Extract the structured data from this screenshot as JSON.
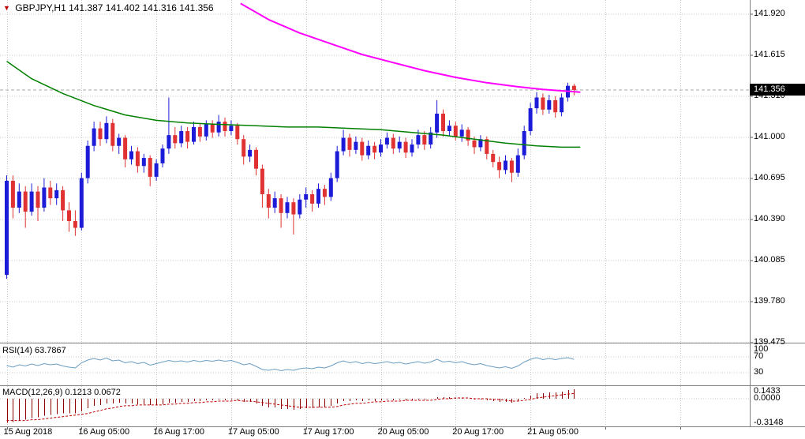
{
  "header": {
    "marker": "▼",
    "title": "GBPJPY,H1 141.387 141.402 141.316 141.356"
  },
  "indicators": {
    "rsi_label": "RSI(14) 63.7867",
    "macd_label": "MACD(12,26,9) 0.1213 0.0672"
  },
  "price_axis": {
    "ticks": [
      "141.920",
      "141.615",
      "141.310",
      "141.000",
      "140.695",
      "140.390",
      "140.085",
      "139.780",
      "139.475"
    ],
    "last_price": "141.356"
  },
  "time_axis": {
    "labels": [
      {
        "index": 0,
        "text": "15 Aug 2018"
      },
      {
        "index": 12,
        "text": "16 Aug 05:00"
      },
      {
        "index": 24,
        "text": "16 Aug 17:00"
      },
      {
        "index": 36,
        "text": "17 Aug 05:00"
      },
      {
        "index": 48,
        "text": "17 Aug 17:00"
      },
      {
        "index": 60,
        "text": "20 Aug 05:00"
      },
      {
        "index": 72,
        "text": "20 Aug 17:00"
      },
      {
        "index": 84,
        "text": "21 Aug 05:00"
      }
    ],
    "grid_indices": [
      0,
      12,
      24,
      36,
      48,
      60,
      72,
      84,
      96,
      108
    ]
  },
  "colors": {
    "bull": "#1c1cd8",
    "bear": "#e03232",
    "grid": "#c8c8c8",
    "axis_line": "#606060",
    "separator": "#808080",
    "last_price_line": "#aaaaaa",
    "badge_bg": "#000000",
    "badge_text": "#ffffff"
  },
  "chart_data": [
    {
      "type": "candlestick",
      "symbol": "GBPJPY",
      "timeframe": "H1",
      "open": 141.387,
      "high": 141.402,
      "low": 141.316,
      "close": 141.356,
      "ylim": [
        139.475,
        141.92
      ],
      "candles": [
        [
          139.98,
          140.72,
          139.95,
          140.68
        ],
        [
          140.68,
          140.72,
          140.4,
          140.48
        ],
        [
          140.48,
          140.66,
          140.44,
          140.6
        ],
        [
          140.6,
          140.64,
          140.33,
          140.45
        ],
        [
          140.45,
          140.66,
          140.42,
          140.6
        ],
        [
          140.6,
          140.64,
          140.38,
          140.48
        ],
        [
          140.48,
          140.7,
          140.45,
          140.63
        ],
        [
          140.63,
          140.68,
          140.5,
          140.55
        ],
        [
          140.55,
          140.66,
          140.5,
          140.61
        ],
        [
          140.61,
          140.64,
          140.38,
          140.46
        ],
        [
          140.46,
          140.52,
          140.3,
          140.38
        ],
        [
          140.38,
          140.46,
          140.27,
          140.33
        ],
        [
          140.33,
          140.74,
          140.31,
          140.7
        ],
        [
          140.7,
          140.98,
          140.66,
          140.94
        ],
        [
          140.94,
          141.12,
          140.9,
          141.07
        ],
        [
          141.07,
          141.12,
          140.94,
          140.99
        ],
        [
          140.99,
          141.16,
          140.96,
          141.11
        ],
        [
          141.11,
          141.14,
          140.9,
          140.94
        ],
        [
          140.94,
          141.03,
          140.88,
          141.0
        ],
        [
          141.0,
          141.02,
          140.78,
          140.84
        ],
        [
          140.84,
          140.94,
          140.8,
          140.9
        ],
        [
          140.9,
          140.93,
          140.74,
          140.79
        ],
        [
          140.79,
          140.88,
          140.74,
          140.85
        ],
        [
          140.85,
          140.87,
          140.64,
          140.71
        ],
        [
          140.71,
          140.84,
          140.68,
          140.81
        ],
        [
          140.81,
          140.95,
          140.78,
          140.92
        ],
        [
          140.92,
          141.3,
          140.88,
          141.02
        ],
        [
          141.02,
          141.08,
          140.92,
          140.96
        ],
        [
          140.96,
          141.09,
          140.93,
          141.05
        ],
        [
          141.05,
          141.08,
          140.92,
          140.97
        ],
        [
          140.97,
          141.12,
          140.95,
          141.08
        ],
        [
          141.08,
          141.11,
          140.97,
          141.01
        ],
        [
          141.01,
          141.13,
          140.98,
          141.1
        ],
        [
          141.1,
          141.13,
          141.0,
          141.04
        ],
        [
          141.04,
          141.17,
          141.01,
          141.12
        ],
        [
          141.12,
          141.15,
          141.01,
          141.05
        ],
        [
          141.05,
          141.13,
          141.02,
          141.09
        ],
        [
          141.09,
          141.11,
          140.95,
          140.99
        ],
        [
          140.99,
          141.02,
          140.8,
          140.86
        ],
        [
          140.86,
          140.95,
          140.82,
          140.91
        ],
        [
          140.91,
          140.93,
          140.72,
          140.77
        ],
        [
          140.77,
          140.8,
          140.48,
          140.58
        ],
        [
          140.58,
          140.62,
          140.4,
          140.48
        ],
        [
          140.48,
          140.6,
          140.44,
          140.55
        ],
        [
          140.55,
          140.58,
          140.33,
          140.44
        ],
        [
          140.44,
          140.56,
          140.4,
          140.52
        ],
        [
          140.52,
          140.55,
          140.28,
          140.43
        ],
        [
          140.43,
          140.58,
          140.4,
          140.54
        ],
        [
          140.54,
          140.63,
          140.48,
          140.58
        ],
        [
          140.58,
          140.61,
          140.45,
          140.51
        ],
        [
          140.51,
          140.66,
          140.48,
          140.62
        ],
        [
          140.62,
          140.65,
          140.5,
          140.56
        ],
        [
          140.56,
          140.74,
          140.53,
          140.7
        ],
        [
          140.7,
          140.94,
          140.67,
          140.9
        ],
        [
          140.9,
          141.06,
          140.87,
          141.0
        ],
        [
          141.0,
          141.03,
          140.86,
          140.91
        ],
        [
          140.91,
          141.01,
          140.88,
          140.97
        ],
        [
          140.97,
          141.0,
          140.83,
          140.87
        ],
        [
          140.87,
          140.98,
          140.84,
          140.94
        ],
        [
          140.94,
          140.97,
          140.84,
          140.89
        ],
        [
          140.89,
          140.99,
          140.86,
          140.95
        ],
        [
          140.95,
          141.04,
          140.92,
          141.0
        ],
        [
          141.0,
          141.03,
          140.88,
          140.92
        ],
        [
          140.92,
          141.01,
          140.89,
          140.97
        ],
        [
          140.97,
          141.0,
          140.85,
          140.89
        ],
        [
          140.89,
          140.99,
          140.86,
          140.95
        ],
        [
          140.95,
          141.06,
          140.92,
          141.02
        ],
        [
          141.02,
          141.05,
          140.91,
          140.95
        ],
        [
          140.95,
          141.08,
          140.92,
          141.04
        ],
        [
          141.04,
          141.28,
          141.0,
          141.18
        ],
        [
          141.18,
          141.21,
          141.01,
          141.05
        ],
        [
          141.05,
          141.13,
          141.01,
          141.09
        ],
        [
          141.09,
          141.12,
          140.98,
          141.01
        ],
        [
          141.01,
          141.1,
          140.97,
          141.06
        ],
        [
          141.06,
          141.08,
          140.94,
          140.98
        ],
        [
          140.98,
          141.01,
          140.88,
          140.93
        ],
        [
          140.93,
          141.02,
          140.9,
          140.99
        ],
        [
          140.99,
          141.01,
          140.84,
          140.88
        ],
        [
          140.88,
          140.91,
          140.78,
          140.82
        ],
        [
          140.82,
          140.86,
          140.7,
          140.76
        ],
        [
          140.76,
          140.87,
          140.73,
          140.83
        ],
        [
          140.83,
          140.85,
          140.67,
          140.74
        ],
        [
          140.74,
          140.92,
          140.71,
          140.87
        ],
        [
          140.87,
          141.09,
          140.84,
          141.05
        ],
        [
          141.05,
          141.26,
          141.02,
          141.22
        ],
        [
          141.22,
          141.34,
          141.18,
          141.3
        ],
        [
          141.3,
          141.33,
          141.17,
          141.21
        ],
        [
          141.21,
          141.32,
          141.18,
          141.28
        ],
        [
          141.28,
          141.31,
          141.15,
          141.19
        ],
        [
          141.19,
          141.33,
          141.16,
          141.3
        ],
        [
          141.3,
          141.41,
          141.27,
          141.387
        ],
        [
          141.387,
          141.402,
          141.316,
          141.356
        ]
      ],
      "overlays": [
        {
          "name": "ma-green-line",
          "color": "#008000",
          "width": 1.5,
          "points": [
            [
              0,
              141.57
            ],
            [
              4,
              141.44
            ],
            [
              9,
              141.33
            ],
            [
              14,
              141.24
            ],
            [
              19,
              141.17
            ],
            [
              24,
              141.13
            ],
            [
              29,
              141.11
            ],
            [
              34,
              141.1
            ],
            [
              40,
              141.09
            ],
            [
              45,
              141.08
            ],
            [
              50,
              141.08
            ],
            [
              55,
              141.07
            ],
            [
              60,
              141.06
            ],
            [
              65,
              141.04
            ],
            [
              70,
              141.02
            ],
            [
              75,
              140.99
            ],
            [
              80,
              140.96
            ],
            [
              85,
              140.94
            ],
            [
              89,
              140.93
            ],
            [
              92,
              140.93
            ]
          ]
        },
        {
          "name": "ma-magenta-line",
          "color": "#ff00ff",
          "width": 2,
          "points": [
            [
              37.5,
              142.0
            ],
            [
              42,
              141.88
            ],
            [
              47,
              141.78
            ],
            [
              52,
              141.7
            ],
            [
              57,
              141.62
            ],
            [
              62,
              141.56
            ],
            [
              67,
              141.5
            ],
            [
              72,
              141.45
            ],
            [
              77,
              141.41
            ],
            [
              82,
              141.38
            ],
            [
              86,
              141.36
            ],
            [
              89,
              141.35
            ],
            [
              92,
              141.34
            ]
          ]
        }
      ]
    },
    {
      "type": "line",
      "name": "RSI(14)",
      "value": 63.7867,
      "color": "#6b9dc2",
      "levels": [
        100,
        70,
        30
      ],
      "values": [
        48,
        44,
        50,
        47,
        52,
        48,
        53,
        50,
        52,
        47,
        44,
        42,
        55,
        62,
        66,
        62,
        67,
        60,
        62,
        55,
        58,
        53,
        56,
        49,
        53,
        57,
        61,
        58,
        60,
        57,
        61,
        58,
        61,
        59,
        62,
        59,
        61,
        56,
        50,
        53,
        46,
        38,
        36,
        39,
        35,
        38,
        36,
        40,
        42,
        40,
        44,
        42,
        47,
        55,
        60,
        55,
        58,
        53,
        56,
        53,
        55,
        58,
        54,
        56,
        52,
        55,
        58,
        54,
        57,
        64,
        57,
        59,
        55,
        58,
        53,
        50,
        53,
        48,
        45,
        42,
        45,
        41,
        47,
        57,
        64,
        68,
        63,
        66,
        63,
        66,
        68,
        63.79
      ]
    },
    {
      "type": "bar",
      "name": "MACD(12,26,9)",
      "macd": 0.1213,
      "signal": 0.0672,
      "histogram_color": "#8b0000",
      "signal_color": "#c00000",
      "axis_labels": [
        "0.1433",
        "0.0000",
        "-0.3148"
      ],
      "axis_values": [
        0.1433,
        0,
        -0.3148
      ],
      "values": [
        -0.31,
        -0.3,
        -0.28,
        -0.27,
        -0.25,
        -0.24,
        -0.22,
        -0.21,
        -0.2,
        -0.19,
        -0.19,
        -0.19,
        -0.16,
        -0.12,
        -0.09,
        -0.08,
        -0.06,
        -0.06,
        -0.05,
        -0.06,
        -0.06,
        -0.07,
        -0.07,
        -0.08,
        -0.08,
        -0.07,
        -0.05,
        -0.05,
        -0.04,
        -0.04,
        -0.03,
        -0.03,
        -0.02,
        -0.02,
        -0.01,
        -0.02,
        -0.01,
        -0.02,
        -0.04,
        -0.04,
        -0.06,
        -0.09,
        -0.11,
        -0.11,
        -0.13,
        -0.13,
        -0.14,
        -0.13,
        -0.12,
        -0.12,
        -0.11,
        -0.11,
        -0.09,
        -0.06,
        -0.03,
        -0.03,
        -0.02,
        -0.03,
        -0.02,
        -0.03,
        -0.02,
        -0.01,
        -0.02,
        -0.01,
        -0.02,
        -0.02,
        -0.01,
        -0.01,
        0.0,
        0.02,
        0.02,
        0.02,
        0.01,
        0.01,
        0.0,
        -0.01,
        -0.01,
        -0.02,
        -0.03,
        -0.04,
        -0.04,
        -0.05,
        -0.03,
        0.01,
        0.04,
        0.07,
        0.07,
        0.08,
        0.08,
        0.09,
        0.11,
        0.1213
      ],
      "signal_values": [
        -0.28,
        -0.28,
        -0.28,
        -0.28,
        -0.27,
        -0.27,
        -0.26,
        -0.25,
        -0.24,
        -0.23,
        -0.22,
        -0.21,
        -0.2,
        -0.19,
        -0.17,
        -0.15,
        -0.13,
        -0.12,
        -0.1,
        -0.09,
        -0.09,
        -0.08,
        -0.08,
        -0.08,
        -0.08,
        -0.08,
        -0.07,
        -0.07,
        -0.06,
        -0.06,
        -0.05,
        -0.05,
        -0.04,
        -0.04,
        -0.03,
        -0.03,
        -0.03,
        -0.02,
        -0.03,
        -0.03,
        -0.04,
        -0.05,
        -0.06,
        -0.07,
        -0.08,
        -0.09,
        -0.1,
        -0.11,
        -0.11,
        -0.11,
        -0.11,
        -0.11,
        -0.11,
        -0.1,
        -0.08,
        -0.07,
        -0.06,
        -0.06,
        -0.05,
        -0.04,
        -0.04,
        -0.03,
        -0.03,
        -0.03,
        -0.02,
        -0.02,
        -0.02,
        -0.02,
        -0.02,
        -0.01,
        0.0,
        0.0,
        0.01,
        0.01,
        0.01,
        0.0,
        0.0,
        0.0,
        -0.01,
        -0.01,
        -0.02,
        -0.03,
        -0.03,
        -0.02,
        -0.01,
        0.01,
        0.02,
        0.03,
        0.04,
        0.05,
        0.06,
        0.0672
      ]
    }
  ]
}
